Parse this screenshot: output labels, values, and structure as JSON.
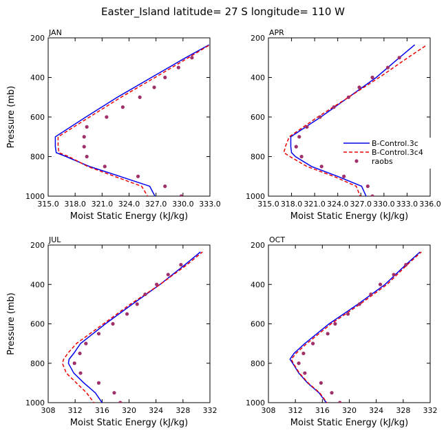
{
  "title": "Easter_Island  latitude= 27 S longitude= 110 W",
  "legend": {
    "items": [
      {
        "label": "B-Control.3c",
        "color": "#0000ee",
        "style": "solid"
      },
      {
        "label": "B-Control.3c4",
        "color": "#ee0000",
        "style": "dashed"
      },
      {
        "label": "raobs",
        "color": "#a0306a",
        "style": "dots"
      }
    ]
  },
  "chart_data": [
    {
      "type": "line",
      "month": "JAN",
      "xlabel": "Moist Static Energy (kJ/kg)",
      "ylabel": "Pressure (mb)",
      "xlim": [
        315.0,
        333.0
      ],
      "ylim": [
        1000,
        200
      ],
      "xticks": [
        315.0,
        318.0,
        321.0,
        324.0,
        327.0,
        330.0,
        333.0
      ],
      "xtick_labels": [
        "315.0",
        "318.0",
        "321.0",
        "324.0",
        "327.0",
        "330.0",
        "333.0"
      ],
      "yticks": [
        200,
        400,
        600,
        800,
        1000
      ],
      "ytick_labels": [
        "200",
        "400",
        "600",
        "800",
        "1000"
      ],
      "series": [
        {
          "name": "B-Control.3c",
          "pressure": [
            1010,
            950,
            900,
            850,
            800,
            780,
            750,
            700,
            600,
            500,
            400,
            300,
            235
          ],
          "values": [
            327.0,
            326.3,
            323.0,
            319.6,
            317.0,
            315.9,
            315.8,
            315.8,
            319.2,
            322.7,
            326.5,
            330.3,
            332.9
          ]
        },
        {
          "name": "B-Control.3c4",
          "pressure": [
            1010,
            950,
            900,
            850,
            800,
            780,
            750,
            700,
            600,
            500,
            400,
            300,
            235
          ],
          "values": [
            326.2,
            325.4,
            322.4,
            319.4,
            317.3,
            316.2,
            316.1,
            316.1,
            319.6,
            323.1,
            326.9,
            330.6,
            333.0
          ]
        },
        {
          "name": "raobs",
          "pressure": [
            1000,
            950,
            900,
            850,
            800,
            750,
            700,
            650,
            600,
            550,
            500,
            450,
            400,
            350,
            300
          ],
          "values": [
            329.8,
            328.0,
            325.0,
            321.3,
            319.3,
            319.0,
            319.0,
            319.3,
            321.5,
            323.3,
            325.2,
            326.8,
            328.0,
            329.5,
            331.0
          ]
        }
      ]
    },
    {
      "type": "line",
      "month": "APR",
      "xlabel": "Moist Static Energy (kJ/kg)",
      "ylabel": "Pressure (mb)",
      "xlim": [
        315.0,
        336.0
      ],
      "ylim": [
        1000,
        200
      ],
      "xticks": [
        315.0,
        318.0,
        321.0,
        324.0,
        327.0,
        330.0,
        333.0,
        336.0
      ],
      "xtick_labels": [
        "315.0",
        "318.0",
        "321.0",
        "324.0",
        "327.0",
        "330.0",
        "333.0",
        "336.0"
      ],
      "yticks": [
        200,
        400,
        600,
        800,
        1000
      ],
      "ytick_labels": [
        "200",
        "400",
        "600",
        "800",
        "1000"
      ],
      "series": [
        {
          "name": "B-Control.3c",
          "pressure": [
            1010,
            950,
            900,
            850,
            800,
            780,
            750,
            700,
            600,
            500,
            400,
            300,
            235
          ],
          "values": [
            327.8,
            327.1,
            324.0,
            320.6,
            318.5,
            318.0,
            317.9,
            317.9,
            321.8,
            325.4,
            329.0,
            332.0,
            334.0
          ]
        },
        {
          "name": "B-Control.3c4",
          "pressure": [
            1010,
            950,
            900,
            850,
            800,
            780,
            750,
            700,
            600,
            500,
            400,
            300,
            235
          ],
          "values": [
            327.0,
            326.4,
            323.5,
            320.0,
            317.8,
            317.0,
            317.2,
            317.7,
            321.4,
            325.4,
            329.4,
            333.1,
            335.6
          ]
        },
        {
          "name": "raobs",
          "pressure": [
            1000,
            950,
            900,
            850,
            800,
            750,
            700,
            650,
            600,
            550,
            500,
            450,
            400,
            350,
            300
          ],
          "values": [
            328.5,
            327.9,
            324.8,
            321.9,
            319.3,
            318.6,
            319.0,
            320.0,
            321.7,
            323.5,
            325.4,
            326.8,
            328.5,
            330.5,
            332.0
          ]
        }
      ]
    },
    {
      "type": "line",
      "month": "JUL",
      "xlabel": "Moist Static Energy (kJ/kg)",
      "ylabel": "Pressure (mb)",
      "xlim": [
        308,
        332
      ],
      "ylim": [
        1000,
        200
      ],
      "xticks": [
        308,
        312,
        316,
        320,
        324,
        328,
        332
      ],
      "xtick_labels": [
        "308",
        "312",
        "316",
        "320",
        "324",
        "328",
        "332"
      ],
      "yticks": [
        200,
        400,
        600,
        800,
        1000
      ],
      "ytick_labels": [
        "200",
        "400",
        "600",
        "800",
        "1000"
      ],
      "series": [
        {
          "name": "B-Control.3c",
          "pressure": [
            1010,
            950,
            900,
            850,
            800,
            780,
            750,
            700,
            600,
            500,
            400,
            300,
            235
          ],
          "values": [
            316.2,
            315.0,
            313.3,
            311.8,
            311.0,
            311.1,
            311.8,
            312.8,
            316.5,
            320.5,
            324.6,
            328.3,
            330.6
          ]
        },
        {
          "name": "B-Control.3c4",
          "pressure": [
            1010,
            950,
            900,
            850,
            800,
            780,
            750,
            700,
            600,
            500,
            400,
            300,
            235
          ],
          "values": [
            315.0,
            313.7,
            312.2,
            310.7,
            310.1,
            310.3,
            310.9,
            312.2,
            316.2,
            320.2,
            324.6,
            328.6,
            330.9
          ]
        },
        {
          "name": "raobs",
          "pressure": [
            1000,
            950,
            900,
            850,
            800,
            750,
            700,
            650,
            600,
            550,
            500,
            450,
            400,
            350,
            300
          ],
          "values": [
            318.7,
            317.8,
            315.5,
            312.8,
            311.9,
            312.7,
            313.6,
            315.5,
            317.6,
            319.7,
            321.2,
            322.4,
            324.1,
            325.8,
            327.7
          ]
        }
      ]
    },
    {
      "type": "line",
      "month": "OCT",
      "xlabel": "Moist Static Energy (kJ/kg)",
      "ylabel": "Pressure (mb)",
      "xlim": [
        308,
        332
      ],
      "ylim": [
        1000,
        200
      ],
      "xticks": [
        308,
        312,
        316,
        320,
        324,
        328,
        332
      ],
      "xtick_labels": [
        "308",
        "312",
        "316",
        "320",
        "324",
        "328",
        "332"
      ],
      "yticks": [
        200,
        400,
        600,
        800,
        1000
      ],
      "ytick_labels": [
        "200",
        "400",
        "600",
        "800",
        "1000"
      ],
      "series": [
        {
          "name": "B-Control.3c",
          "pressure": [
            1010,
            950,
            900,
            850,
            800,
            780,
            750,
            700,
            600,
            500,
            400,
            300,
            235
          ],
          "values": [
            316.8,
            315.5,
            313.8,
            312.5,
            311.6,
            311.2,
            311.8,
            313.4,
            317.0,
            321.3,
            325.3,
            328.4,
            330.5
          ]
        },
        {
          "name": "B-Control.3c4",
          "pressure": [
            1010,
            950,
            900,
            850,
            800,
            780,
            750,
            700,
            600,
            500,
            400,
            300,
            235
          ],
          "values": [
            316.9,
            315.6,
            313.9,
            312.6,
            311.7,
            311.4,
            312.1,
            313.7,
            317.3,
            321.6,
            325.6,
            328.6,
            330.7
          ]
        },
        {
          "name": "raobs",
          "pressure": [
            1000,
            950,
            900,
            850,
            800,
            750,
            700,
            650,
            600,
            550,
            500,
            450,
            400,
            350,
            300
          ],
          "values": [
            318.6,
            317.4,
            315.8,
            313.4,
            312.5,
            313.2,
            314.6,
            316.8,
            317.9,
            319.8,
            321.5,
            323.2,
            324.6,
            326.6,
            328.4
          ]
        }
      ]
    }
  ]
}
